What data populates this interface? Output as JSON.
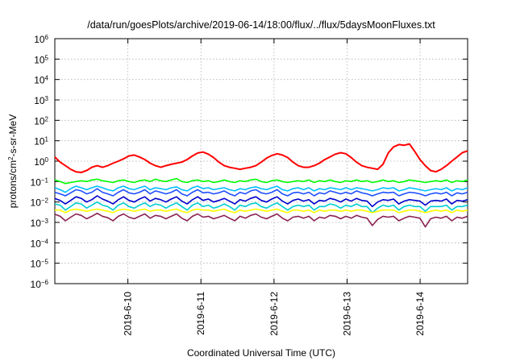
{
  "chart_data": {
    "type": "line",
    "title": "/data/run/goesPlots/archive/2019-06-14/18:00/flux/../flux/5daysMoonFluxes.txt",
    "xlabel": "Coordinated Universal Time (UTC)",
    "ylabel": "protons/cm2-s-sr-MeV",
    "ylabel_parts": {
      "pre": "protons/cm",
      "sup": "2",
      "post": "-s-sr-MeV"
    },
    "yscale": "log",
    "ylim": [
      1e-06,
      1000000.0
    ],
    "xlim_days": [
      0.0,
      5.65
    ],
    "ytick_exponents": [
      -6,
      -5,
      -4,
      -3,
      -2,
      -1,
      0,
      1,
      2,
      3,
      4,
      5,
      6
    ],
    "ytick_base": "10",
    "xticks": [
      {
        "label": "2019-6-10",
        "day": 1.0
      },
      {
        "label": "2019-6-11",
        "day": 2.0
      },
      {
        "label": "2019-6-12",
        "day": 3.0
      },
      {
        "label": "2019-6-13",
        "day": 4.0
      },
      {
        "label": "2019-6-14",
        "day": 5.0
      }
    ],
    "grid": true,
    "series": [
      {
        "color": "#ff0000",
        "values": [
          1.6,
          0.9,
          0.6,
          0.4,
          0.3,
          0.28,
          0.35,
          0.5,
          0.6,
          0.5,
          0.6,
          0.8,
          1.0,
          1.3,
          1.8,
          2.0,
          1.6,
          1.2,
          0.8,
          0.6,
          0.5,
          0.6,
          0.7,
          0.8,
          0.9,
          1.2,
          1.8,
          2.5,
          2.8,
          2.2,
          1.5,
          0.9,
          0.6,
          0.5,
          0.45,
          0.4,
          0.45,
          0.5,
          0.6,
          0.9,
          1.4,
          1.9,
          2.3,
          2.0,
          1.5,
          0.9,
          0.6,
          0.5,
          0.5,
          0.6,
          0.8,
          1.2,
          1.6,
          2.2,
          2.6,
          2.3,
          1.5,
          0.9,
          0.6,
          0.5,
          0.45,
          0.4,
          0.7,
          2.5,
          5.0,
          6.5,
          6.0,
          7.0,
          3.0,
          1.2,
          0.6,
          0.35,
          0.3,
          0.4,
          0.6,
          1.0,
          1.6,
          2.6,
          3.2
        ]
      },
      {
        "color": "#00ff00",
        "values": [
          0.12,
          0.1,
          0.08,
          0.09,
          0.1,
          0.11,
          0.1,
          0.12,
          0.13,
          0.11,
          0.1,
          0.09,
          0.11,
          0.12,
          0.1,
          0.09,
          0.11,
          0.12,
          0.1,
          0.13,
          0.11,
          0.1,
          0.12,
          0.14,
          0.1,
          0.09,
          0.11,
          0.12,
          0.1,
          0.11,
          0.09,
          0.1,
          0.12,
          0.1,
          0.09,
          0.11,
          0.1,
          0.12,
          0.13,
          0.1,
          0.09,
          0.11,
          0.12,
          0.1,
          0.09,
          0.1,
          0.11,
          0.1,
          0.12,
          0.09,
          0.11,
          0.1,
          0.12,
          0.1,
          0.09,
          0.11,
          0.1,
          0.12,
          0.1,
          0.11,
          0.09,
          0.1,
          0.12,
          0.1,
          0.11,
          0.09,
          0.1,
          0.12,
          0.11,
          0.1,
          0.09,
          0.1,
          0.11,
          0.1,
          0.12,
          0.09,
          0.11,
          0.1,
          0.12
        ]
      },
      {
        "color": "#00bfff",
        "values": [
          0.05,
          0.04,
          0.03,
          0.045,
          0.06,
          0.05,
          0.04,
          0.05,
          0.06,
          0.05,
          0.04,
          0.035,
          0.05,
          0.06,
          0.045,
          0.04,
          0.05,
          0.06,
          0.04,
          0.05,
          0.045,
          0.04,
          0.05,
          0.055,
          0.04,
          0.035,
          0.05,
          0.06,
          0.045,
          0.05,
          0.04,
          0.045,
          0.05,
          0.04,
          0.035,
          0.045,
          0.04,
          0.05,
          0.055,
          0.045,
          0.04,
          0.05,
          0.06,
          0.04,
          0.035,
          0.045,
          0.05,
          0.04,
          0.05,
          0.035,
          0.045,
          0.04,
          0.05,
          0.045,
          0.04,
          0.05,
          0.04,
          0.05,
          0.045,
          0.04,
          0.035,
          0.04,
          0.05,
          0.045,
          0.05,
          0.035,
          0.04,
          0.05,
          0.045,
          0.04,
          0.035,
          0.04,
          0.045,
          0.04,
          0.05,
          0.035,
          0.045,
          0.04,
          0.05
        ]
      },
      {
        "color": "#1f4fff",
        "values": [
          0.03,
          0.025,
          0.02,
          0.028,
          0.04,
          0.035,
          0.025,
          0.03,
          0.045,
          0.03,
          0.025,
          0.02,
          0.03,
          0.04,
          0.028,
          0.025,
          0.03,
          0.04,
          0.025,
          0.035,
          0.03,
          0.025,
          0.03,
          0.04,
          0.025,
          0.02,
          0.03,
          0.04,
          0.028,
          0.03,
          0.025,
          0.028,
          0.035,
          0.025,
          0.02,
          0.03,
          0.025,
          0.035,
          0.04,
          0.028,
          0.025,
          0.03,
          0.04,
          0.025,
          0.02,
          0.028,
          0.03,
          0.025,
          0.03,
          0.02,
          0.028,
          0.025,
          0.035,
          0.03,
          0.025,
          0.03,
          0.025,
          0.035,
          0.028,
          0.025,
          0.02,
          0.025,
          0.03,
          0.028,
          0.03,
          0.02,
          0.025,
          0.03,
          0.028,
          0.025,
          0.02,
          0.025,
          0.028,
          0.025,
          0.03,
          0.02,
          0.028,
          0.025,
          0.03
        ]
      },
      {
        "color": "#0000cd",
        "values": [
          0.015,
          0.012,
          0.008,
          0.012,
          0.018,
          0.015,
          0.01,
          0.013,
          0.02,
          0.014,
          0.011,
          0.008,
          0.013,
          0.018,
          0.012,
          0.01,
          0.014,
          0.018,
          0.011,
          0.015,
          0.013,
          0.01,
          0.014,
          0.018,
          0.011,
          0.008,
          0.013,
          0.018,
          0.012,
          0.014,
          0.01,
          0.012,
          0.015,
          0.011,
          0.008,
          0.013,
          0.011,
          0.015,
          0.018,
          0.012,
          0.01,
          0.014,
          0.018,
          0.011,
          0.008,
          0.012,
          0.014,
          0.011,
          0.013,
          0.008,
          0.012,
          0.011,
          0.015,
          0.013,
          0.01,
          0.014,
          0.011,
          0.015,
          0.012,
          0.011,
          0.006,
          0.01,
          0.013,
          0.012,
          0.014,
          0.008,
          0.011,
          0.013,
          0.012,
          0.011,
          0.007,
          0.011,
          0.012,
          0.011,
          0.014,
          0.008,
          0.012,
          0.011,
          0.013
        ]
      },
      {
        "color": "#00ced1",
        "values": [
          0.008,
          0.007,
          0.004,
          0.006,
          0.009,
          0.008,
          0.005,
          0.007,
          0.01,
          0.007,
          0.006,
          0.004,
          0.007,
          0.009,
          0.006,
          0.005,
          0.007,
          0.009,
          0.006,
          0.008,
          0.007,
          0.005,
          0.007,
          0.009,
          0.006,
          0.004,
          0.007,
          0.009,
          0.006,
          0.007,
          0.005,
          0.006,
          0.008,
          0.006,
          0.004,
          0.007,
          0.006,
          0.008,
          0.009,
          0.006,
          0.005,
          0.007,
          0.009,
          0.006,
          0.004,
          0.006,
          0.007,
          0.006,
          0.007,
          0.004,
          0.006,
          0.006,
          0.008,
          0.007,
          0.005,
          0.007,
          0.006,
          0.008,
          0.006,
          0.006,
          0.003,
          0.005,
          0.007,
          0.006,
          0.007,
          0.004,
          0.006,
          0.007,
          0.006,
          0.006,
          0.0035,
          0.006,
          0.006,
          0.006,
          0.007,
          0.004,
          0.006,
          0.006,
          0.007
        ]
      },
      {
        "color": "#ffff00",
        "values": [
          0.004,
          0.004,
          0.003,
          0.004,
          0.0045,
          0.004,
          0.0035,
          0.004,
          0.0045,
          0.004,
          0.0035,
          0.003,
          0.004,
          0.0045,
          0.004,
          0.0035,
          0.004,
          0.0045,
          0.0035,
          0.004,
          0.004,
          0.0035,
          0.004,
          0.0045,
          0.0035,
          0.003,
          0.004,
          0.0045,
          0.004,
          0.004,
          0.0035,
          0.004,
          0.0045,
          0.0035,
          0.003,
          0.004,
          0.0035,
          0.004,
          0.0045,
          0.004,
          0.0035,
          0.004,
          0.0045,
          0.0035,
          0.003,
          0.004,
          0.004,
          0.0035,
          0.004,
          0.003,
          0.004,
          0.0035,
          0.004,
          0.004,
          0.0035,
          0.004,
          0.0035,
          0.004,
          0.004,
          0.0035,
          0.003,
          0.0035,
          0.004,
          0.004,
          0.004,
          0.003,
          0.0035,
          0.004,
          0.004,
          0.0035,
          0.003,
          0.0035,
          0.004,
          0.0035,
          0.004,
          0.003,
          0.004,
          0.0035,
          0.004
        ]
      },
      {
        "color": "#8b2252",
        "values": [
          0.0025,
          0.002,
          0.0012,
          0.0018,
          0.0026,
          0.0022,
          0.0015,
          0.002,
          0.0028,
          0.002,
          0.0017,
          0.0012,
          0.002,
          0.0026,
          0.0018,
          0.0015,
          0.002,
          0.0026,
          0.0016,
          0.0022,
          0.002,
          0.0015,
          0.002,
          0.0026,
          0.0016,
          0.0012,
          0.002,
          0.0026,
          0.0018,
          0.002,
          0.0015,
          0.0018,
          0.0022,
          0.0016,
          0.0012,
          0.002,
          0.0016,
          0.0022,
          0.0026,
          0.0018,
          0.0015,
          0.002,
          0.0026,
          0.0016,
          0.0012,
          0.0018,
          0.002,
          0.0016,
          0.002,
          0.0012,
          0.0018,
          0.0016,
          0.0022,
          0.002,
          0.0015,
          0.002,
          0.0016,
          0.0022,
          0.0018,
          0.0016,
          0.0007,
          0.0014,
          0.002,
          0.0018,
          0.002,
          0.0012,
          0.0016,
          0.002,
          0.0018,
          0.0016,
          0.0006,
          0.0015,
          0.0018,
          0.0016,
          0.002,
          0.0012,
          0.0018,
          0.0016,
          0.002
        ]
      }
    ]
  }
}
